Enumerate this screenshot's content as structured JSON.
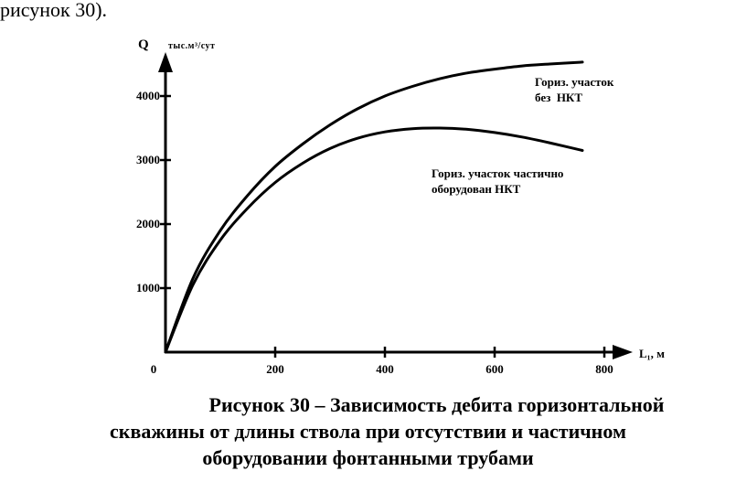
{
  "header_fragment": "рисунок 30).",
  "chart_data": {
    "type": "line",
    "ylabel": "Q",
    "yunit": "тыс.м³/сут",
    "xlabel": "L₁, м",
    "xticks": [
      0,
      200,
      400,
      600,
      800
    ],
    "yticks": [
      1000,
      2000,
      3000,
      4000
    ],
    "xlim": [
      0,
      800
    ],
    "ylim": [
      0,
      4500
    ],
    "grid": false,
    "series": [
      {
        "name": "Гориз. участок без НКТ",
        "label_lines": [
          "Гориз. участок",
          "без  НКТ"
        ],
        "x": [
          0,
          50,
          100,
          150,
          200,
          250,
          300,
          350,
          400,
          450,
          500,
          550,
          600,
          650,
          700,
          760
        ],
        "y": [
          0,
          1150,
          1900,
          2450,
          2900,
          3250,
          3550,
          3800,
          4000,
          4150,
          4270,
          4360,
          4420,
          4470,
          4500,
          4530
        ]
      },
      {
        "name": "Гориз. участок частично оборудован НКТ",
        "label_lines": [
          "Гориз. участок частично",
          "оборудован НКТ"
        ],
        "x": [
          0,
          50,
          100,
          150,
          200,
          250,
          300,
          350,
          400,
          450,
          500,
          550,
          600,
          650,
          700,
          760
        ],
        "y": [
          0,
          1050,
          1750,
          2250,
          2650,
          2950,
          3180,
          3340,
          3440,
          3490,
          3500,
          3480,
          3430,
          3360,
          3270,
          3150
        ]
      }
    ]
  },
  "caption_lines": [
    "Рисунок 30 – Зависимость дебита горизонтальной",
    "скважины от длины ствола при отсутствии  и частичном",
    "оборудовании фонтанными трубами"
  ]
}
